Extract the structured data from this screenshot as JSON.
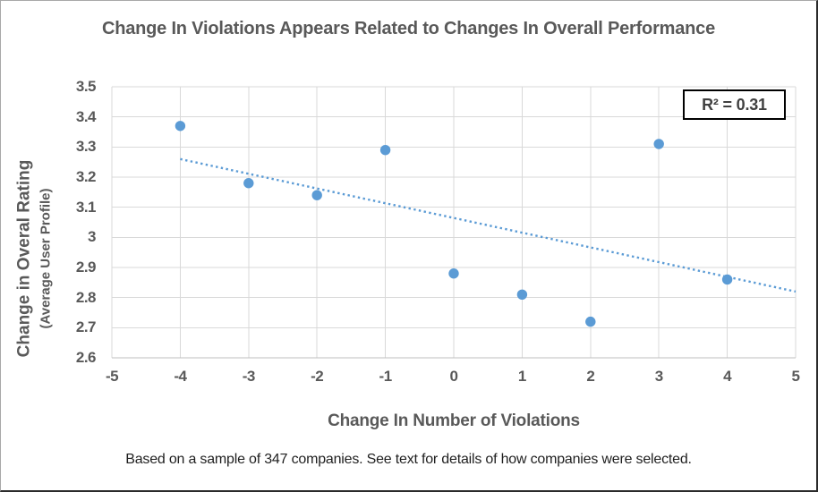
{
  "chart": {
    "title": "Change In Violations Appears Related to Changes In Overall Performance",
    "y_axis_title_main": "Change in Overal Rating ",
    "y_axis_title_sub": "(Average User Profile)",
    "x_axis_title": "Change In Number of Violations",
    "r_squared_label": "R² = 0.31",
    "footnote": "Based on a sample of 347 companies. See text for details of how companies were selected."
  },
  "chart_data": {
    "type": "scatter",
    "title": "Change In Violations Appears Related to Changes In Overall Performance",
    "xlabel": "Change In Number of Violations",
    "ylabel": "Change in Overal Rating (Average User Profile)",
    "points": [
      {
        "x": -4,
        "y": 3.37
      },
      {
        "x": -3,
        "y": 3.18
      },
      {
        "x": -2,
        "y": 3.14
      },
      {
        "x": -1,
        "y": 3.29
      },
      {
        "x": 0,
        "y": 2.88
      },
      {
        "x": 1,
        "y": 2.81
      },
      {
        "x": 2,
        "y": 2.72
      },
      {
        "x": 3,
        "y": 3.31
      },
      {
        "x": 4,
        "y": 2.86
      }
    ],
    "trendline": {
      "type": "linear",
      "style": "dotted",
      "x_start": -4,
      "y_start": 3.26,
      "x_end": 5,
      "y_end": 2.82,
      "r_squared": 0.31
    },
    "xlim": [
      -5,
      5
    ],
    "ylim": [
      2.6,
      3.5
    ],
    "x_ticks": {
      "values": [
        -5,
        -4,
        -3,
        -2,
        -1,
        0,
        1,
        2,
        3,
        4,
        5
      ],
      "labels": [
        "-5",
        "-4",
        "-3",
        "-2",
        "-1",
        "0",
        "1",
        "2",
        "3",
        "4",
        "5"
      ]
    },
    "y_ticks": {
      "values": [
        3.5,
        3.4,
        3.3,
        3.2,
        3.1,
        3.0,
        2.9,
        2.8,
        2.7,
        2.6
      ],
      "labels": [
        "3.5",
        "3.4",
        "3.3",
        "3.2",
        "3.1",
        "3",
        "2.9",
        "2.8",
        "2.7",
        "2.6"
      ]
    },
    "grid": true,
    "legend": false,
    "colors": {
      "marker": "#5B9BD5",
      "trendline": "#5B9BD5",
      "gridline": "#D9D9D9",
      "axis_line": "#BFBFBF",
      "label_text": "#595959",
      "footnote_text": "#1F1F1F",
      "r_squared_border": "#000000",
      "background": "#FFFFFF"
    }
  }
}
